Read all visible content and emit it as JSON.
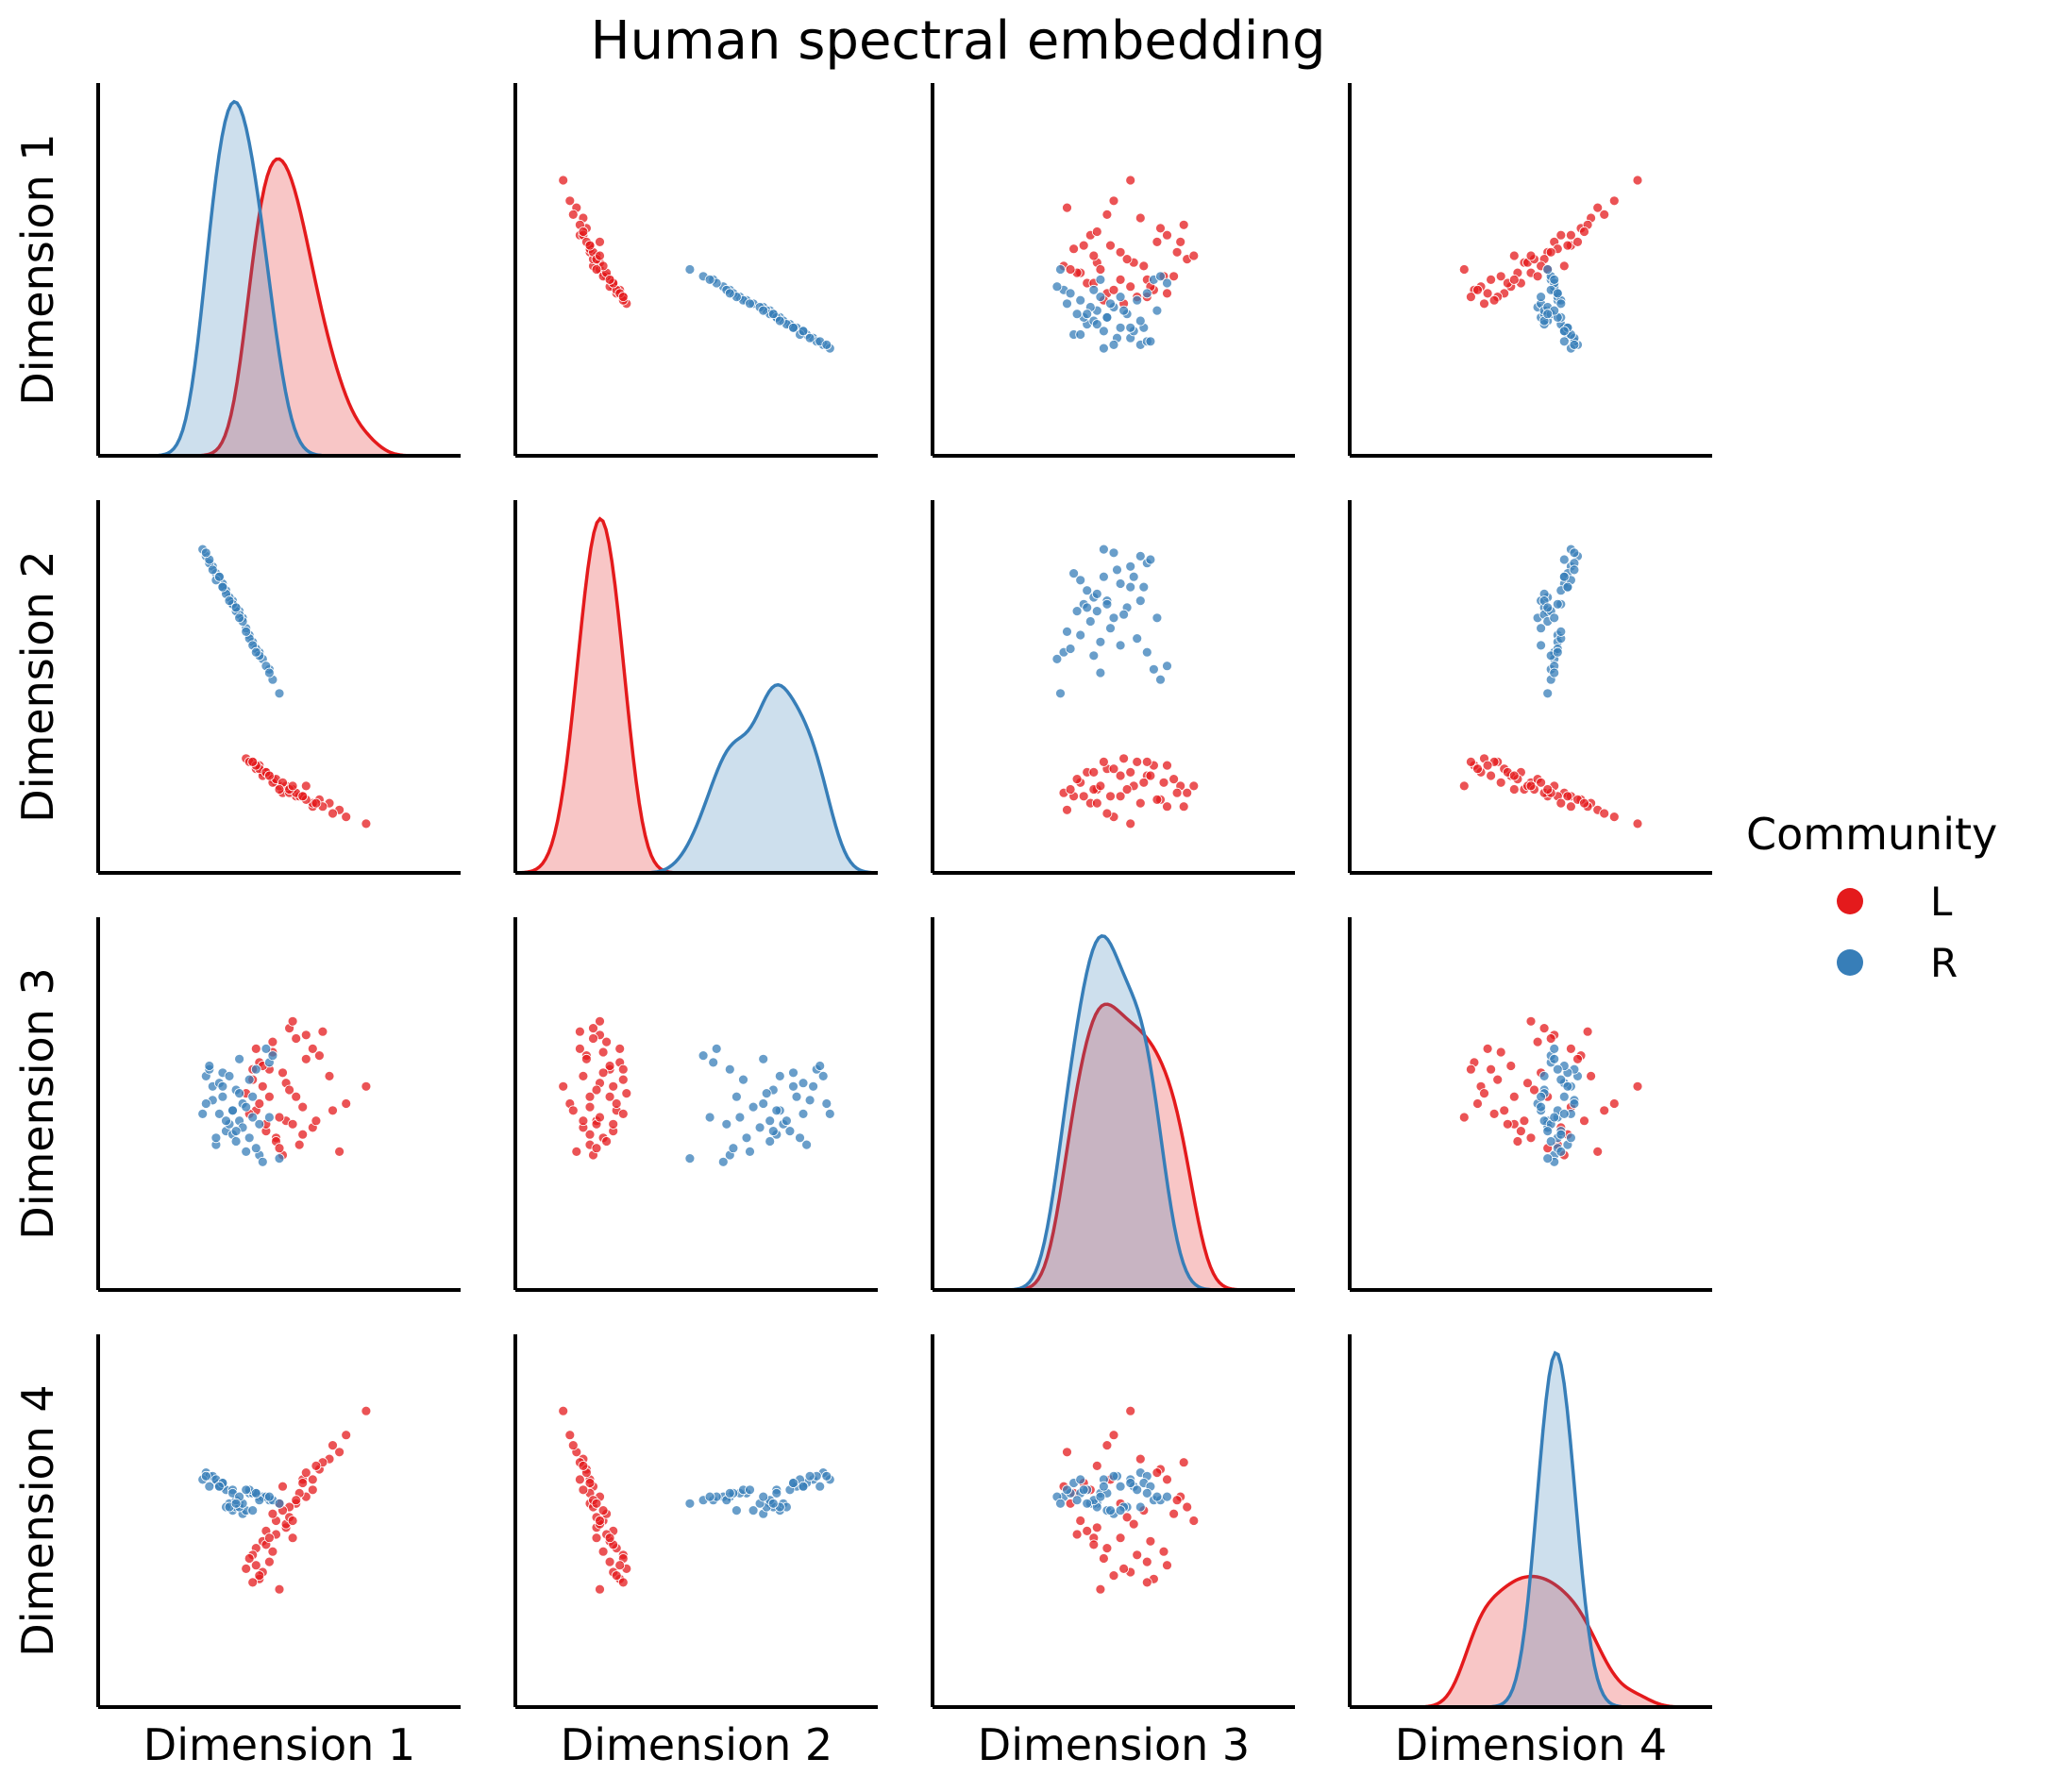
{
  "chart_data": {
    "type": "scatter",
    "title": "Human spectral embedding",
    "variables": [
      "Dimension 1",
      "Dimension 2",
      "Dimension 3",
      "Dimension 4"
    ],
    "legend": {
      "title": "Community",
      "placement": "right",
      "entries": [
        {
          "label": "L",
          "color": "#e41a1c"
        },
        {
          "label": "R",
          "color": "#377eb8"
        }
      ]
    },
    "grid": false,
    "ticks": false,
    "points": {
      "L": [
        [
          0.52,
          0.2,
          0.45,
          0.48
        ],
        [
          0.47,
          0.24,
          0.6,
          0.38
        ],
        [
          0.55,
          0.18,
          0.52,
          0.55
        ],
        [
          0.43,
          0.26,
          0.48,
          0.42
        ],
        [
          0.6,
          0.15,
          0.66,
          0.62
        ],
        [
          0.49,
          0.22,
          0.4,
          0.5
        ],
        [
          0.58,
          0.21,
          0.7,
          0.57
        ],
        [
          0.45,
          0.25,
          0.55,
          0.35
        ],
        [
          0.51,
          0.19,
          0.35,
          0.6
        ],
        [
          0.65,
          0.16,
          0.58,
          0.68
        ],
        [
          0.44,
          0.27,
          0.62,
          0.33
        ],
        [
          0.54,
          0.2,
          0.44,
          0.45
        ],
        [
          0.48,
          0.23,
          0.68,
          0.52
        ],
        [
          0.7,
          0.12,
          0.5,
          0.75
        ],
        [
          0.42,
          0.28,
          0.57,
          0.4
        ],
        [
          0.56,
          0.18,
          0.38,
          0.58
        ],
        [
          0.5,
          0.21,
          0.46,
          0.3
        ],
        [
          0.62,
          0.17,
          0.64,
          0.65
        ],
        [
          0.46,
          0.25,
          0.42,
          0.47
        ],
        [
          0.53,
          0.19,
          0.72,
          0.54
        ],
        [
          0.4,
          0.29,
          0.53,
          0.36
        ],
        [
          0.57,
          0.18,
          0.49,
          0.62
        ],
        [
          0.45,
          0.24,
          0.61,
          0.44
        ],
        [
          0.68,
          0.14,
          0.36,
          0.7
        ],
        [
          0.52,
          0.21,
          0.56,
          0.49
        ],
        [
          0.48,
          0.22,
          0.65,
          0.41
        ],
        [
          0.6,
          0.16,
          0.43,
          0.59
        ],
        [
          0.44,
          0.26,
          0.5,
          0.34
        ],
        [
          0.55,
          0.19,
          0.69,
          0.56
        ],
        [
          0.76,
          0.1,
          0.55,
          0.82
        ],
        [
          0.41,
          0.28,
          0.47,
          0.39
        ],
        [
          0.58,
          0.17,
          0.63,
          0.64
        ],
        [
          0.49,
          0.23,
          0.39,
          0.46
        ],
        [
          0.53,
          0.2,
          0.54,
          0.51
        ],
        [
          0.63,
          0.15,
          0.71,
          0.67
        ],
        [
          0.46,
          0.25,
          0.44,
          0.43
        ],
        [
          0.51,
          0.22,
          0.59,
          0.53
        ],
        [
          0.66,
          0.13,
          0.48,
          0.72
        ],
        [
          0.43,
          0.27,
          0.66,
          0.37
        ],
        [
          0.57,
          0.18,
          0.41,
          0.61
        ],
        [
          0.47,
          0.24,
          0.52,
          0.45
        ],
        [
          0.54,
          0.21,
          0.74,
          0.5
        ],
        [
          0.61,
          0.16,
          0.45,
          0.66
        ],
        [
          0.42,
          0.28,
          0.6,
          0.32
        ],
        [
          0.5,
          0.2,
          0.37,
          0.55
        ]
      ],
      "R": [
        [
          0.38,
          0.72,
          0.45,
          0.55
        ],
        [
          0.33,
          0.8,
          0.52,
          0.6
        ],
        [
          0.41,
          0.65,
          0.4,
          0.58
        ],
        [
          0.3,
          0.85,
          0.55,
          0.62
        ],
        [
          0.36,
          0.75,
          0.48,
          0.53
        ],
        [
          0.44,
          0.6,
          0.35,
          0.57
        ],
        [
          0.28,
          0.88,
          0.58,
          0.64
        ],
        [
          0.39,
          0.7,
          0.5,
          0.52
        ],
        [
          0.34,
          0.78,
          0.42,
          0.59
        ],
        [
          0.47,
          0.55,
          0.62,
          0.56
        ],
        [
          0.31,
          0.83,
          0.38,
          0.61
        ],
        [
          0.37,
          0.73,
          0.54,
          0.54
        ],
        [
          0.42,
          0.63,
          0.46,
          0.58
        ],
        [
          0.29,
          0.86,
          0.6,
          0.63
        ],
        [
          0.35,
          0.76,
          0.44,
          0.55
        ],
        [
          0.45,
          0.58,
          0.33,
          0.57
        ],
        [
          0.32,
          0.82,
          0.56,
          0.6
        ],
        [
          0.4,
          0.67,
          0.49,
          0.53
        ],
        [
          0.36,
          0.74,
          0.41,
          0.59
        ],
        [
          0.48,
          0.52,
          0.64,
          0.56
        ],
        [
          0.27,
          0.9,
          0.47,
          0.62
        ],
        [
          0.38,
          0.71,
          0.53,
          0.54
        ],
        [
          0.43,
          0.61,
          0.37,
          0.58
        ],
        [
          0.33,
          0.79,
          0.59,
          0.61
        ],
        [
          0.39,
          0.69,
          0.43,
          0.55
        ],
        [
          0.46,
          0.56,
          0.66,
          0.57
        ],
        [
          0.3,
          0.84,
          0.51,
          0.63
        ],
        [
          0.37,
          0.72,
          0.39,
          0.56
        ],
        [
          0.41,
          0.64,
          0.57,
          0.59
        ],
        [
          0.34,
          0.77,
          0.45,
          0.54
        ],
        [
          0.5,
          0.48,
          0.34,
          0.55
        ],
        [
          0.29,
          0.87,
          0.61,
          0.6
        ],
        [
          0.36,
          0.74,
          0.48,
          0.58
        ],
        [
          0.42,
          0.62,
          0.52,
          0.53
        ],
        [
          0.31,
          0.81,
          0.4,
          0.62
        ],
        [
          0.38,
          0.7,
          0.63,
          0.57
        ],
        [
          0.44,
          0.59,
          0.44,
          0.56
        ],
        [
          0.33,
          0.79,
          0.55,
          0.61
        ],
        [
          0.4,
          0.66,
          0.36,
          0.59
        ],
        [
          0.35,
          0.75,
          0.58,
          0.54
        ],
        [
          0.47,
          0.54,
          0.46,
          0.57
        ],
        [
          0.28,
          0.89,
          0.5,
          0.63
        ],
        [
          0.37,
          0.73,
          0.42,
          0.55
        ],
        [
          0.43,
          0.6,
          0.6,
          0.58
        ],
        [
          0.32,
          0.82,
          0.47,
          0.6
        ]
      ]
    }
  }
}
